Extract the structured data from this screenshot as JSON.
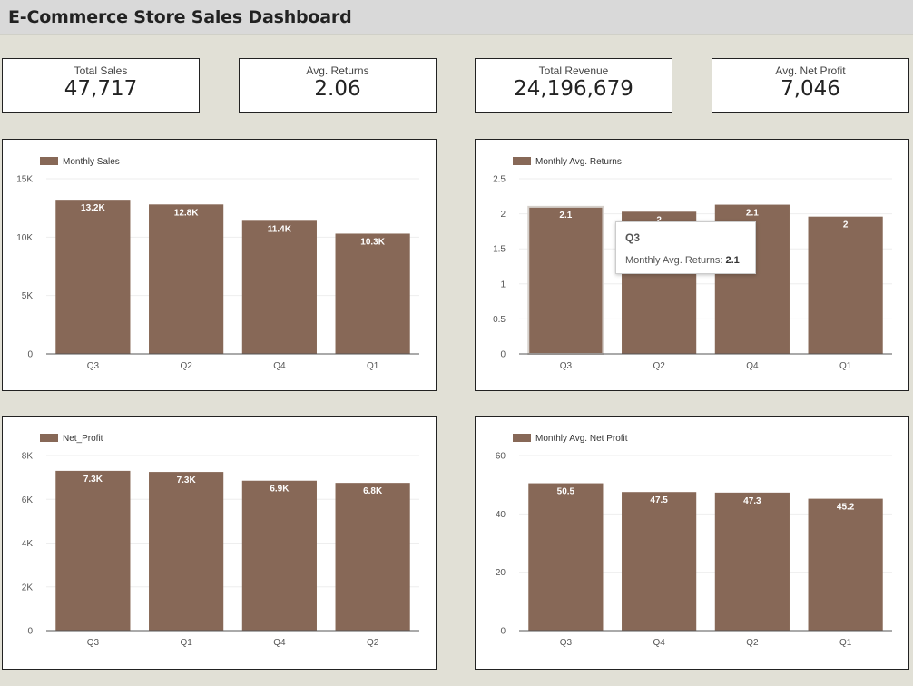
{
  "header": {
    "title": "E-Commerce Store Sales Dashboard"
  },
  "kpis": [
    {
      "label": "Total Sales",
      "value": "47,717"
    },
    {
      "label": "Avg. Returns",
      "value": "2.06"
    },
    {
      "label": "Total Revenue",
      "value": "24,196,679"
    },
    {
      "label": "Avg. Net Profit",
      "value": "7,046"
    }
  ],
  "colors": {
    "bar": "#876857",
    "grid": "#eeeeee",
    "axis": "#555555",
    "text": "#333333"
  },
  "chart_data": [
    {
      "type": "bar",
      "legend": "Monthly Sales",
      "categories": [
        "Q3",
        "Q2",
        "Q4",
        "Q1"
      ],
      "values": [
        13200,
        12800,
        11400,
        10300
      ],
      "data_labels": [
        "13.2K",
        "12.8K",
        "11.4K",
        "10.3K"
      ],
      "yticks": [
        0,
        5000,
        10000,
        15000
      ],
      "ytick_labels": [
        "0",
        "5K",
        "10K",
        "15K"
      ],
      "ylim": [
        0,
        15000
      ],
      "legend_position": "top-left"
    },
    {
      "type": "bar",
      "legend": "Monthly Avg. Returns",
      "categories": [
        "Q3",
        "Q2",
        "Q4",
        "Q1"
      ],
      "values": [
        2.1,
        2.03,
        2.13,
        1.96
      ],
      "data_labels": [
        "2.1",
        "2",
        "2.1",
        "2"
      ],
      "yticks": [
        0,
        0.5,
        1,
        1.5,
        2,
        2.5
      ],
      "ytick_labels": [
        "0",
        "0.5",
        "1",
        "1.5",
        "2",
        "2.5"
      ],
      "ylim": [
        0,
        2.5
      ],
      "legend_position": "top-left",
      "tooltip": {
        "category": "Q3",
        "series": "Monthly Avg. Returns:",
        "value": "2.1"
      }
    },
    {
      "type": "bar",
      "legend": "Net_Profit",
      "categories": [
        "Q3",
        "Q1",
        "Q4",
        "Q2"
      ],
      "values": [
        7300,
        7250,
        6850,
        6750
      ],
      "data_labels": [
        "7.3K",
        "7.3K",
        "6.9K",
        "6.8K"
      ],
      "yticks": [
        0,
        2000,
        4000,
        6000,
        8000
      ],
      "ytick_labels": [
        "0",
        "2K",
        "4K",
        "6K",
        "8K"
      ],
      "ylim": [
        0,
        8000
      ],
      "legend_position": "top-left"
    },
    {
      "type": "bar",
      "legend": "Monthly Avg. Net Profit",
      "categories": [
        "Q3",
        "Q4",
        "Q2",
        "Q1"
      ],
      "values": [
        50.5,
        47.5,
        47.3,
        45.2
      ],
      "data_labels": [
        "50.5",
        "47.5",
        "47.3",
        "45.2"
      ],
      "yticks": [
        0,
        20,
        40,
        60
      ],
      "ytick_labels": [
        "0",
        "20",
        "40",
        "60"
      ],
      "ylim": [
        0,
        60
      ],
      "legend_position": "top-left"
    }
  ]
}
